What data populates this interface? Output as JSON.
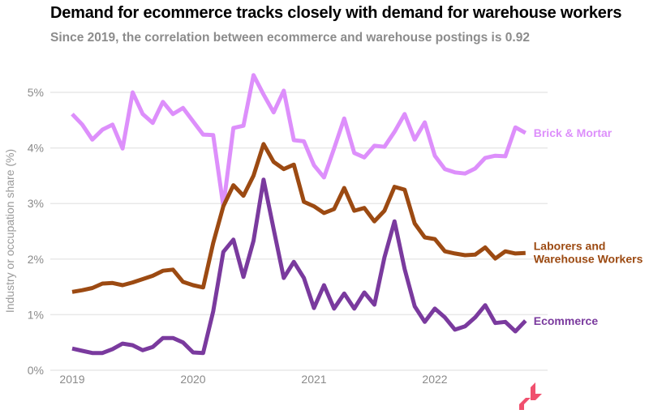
{
  "header": {
    "title": "Demand for ecommerce tracks closely with demand for warehouse workers",
    "subtitle": "Since 2019, the correlation between ecommerce and warehouse postings is 0.92"
  },
  "logo": {
    "icon": "chevron-logo-icon",
    "color": "#f0506e"
  },
  "chart_data": {
    "type": "line",
    "title": "Demand for ecommerce tracks closely with demand for warehouse workers",
    "subtitle": "Since 2019, the correlation between ecommerce and warehouse postings is 0.92",
    "xlabel": "",
    "ylabel": "Industry or occupation share (%)",
    "ylim": [
      0,
      5.5
    ],
    "yticks": [
      0,
      1,
      2,
      3,
      4,
      5
    ],
    "ytick_labels": [
      "0%",
      "1%",
      "2%",
      "3%",
      "4%",
      "5%"
    ],
    "xticks": [
      2019,
      2020,
      2021,
      2022
    ],
    "xtick_labels": [
      "2019",
      "2020",
      "2021",
      "2022"
    ],
    "x_start": "2019-01",
    "x_step": "month",
    "grid": "horizontal",
    "legend": "direct labels at right end of lines",
    "series": [
      {
        "name": "Brick & Mortar",
        "label": "Brick & Mortar",
        "color": "#dd8ffb",
        "values": [
          4.61,
          4.42,
          4.15,
          4.33,
          4.42,
          3.99,
          5.0,
          4.61,
          4.45,
          4.83,
          4.61,
          4.72,
          4.48,
          4.24,
          4.23,
          2.95,
          4.36,
          4.4,
          5.31,
          4.96,
          4.64,
          5.03,
          4.14,
          4.12,
          3.69,
          3.47,
          3.99,
          4.53,
          3.91,
          3.83,
          4.04,
          4.02,
          4.29,
          4.61,
          4.15,
          4.46,
          3.86,
          3.62,
          3.56,
          3.54,
          3.63,
          3.82,
          3.86,
          3.85,
          4.37,
          4.27
        ]
      },
      {
        "name": "Laborers and Warehouse Workers",
        "label_lines": [
          "Laborers and",
          "Warehouse Workers"
        ],
        "color": "#9c4a12",
        "values": [
          1.41,
          1.44,
          1.48,
          1.56,
          1.57,
          1.53,
          1.58,
          1.64,
          1.7,
          1.79,
          1.81,
          1.59,
          1.53,
          1.49,
          2.29,
          2.95,
          3.33,
          3.14,
          3.5,
          4.07,
          3.75,
          3.62,
          3.7,
          3.03,
          2.95,
          2.83,
          2.9,
          3.28,
          2.87,
          2.92,
          2.68,
          2.87,
          3.3,
          3.25,
          2.64,
          2.39,
          2.36,
          2.14,
          2.1,
          2.07,
          2.08,
          2.21,
          2.01,
          2.14,
          2.1,
          2.11
        ]
      },
      {
        "name": "Ecommerce",
        "label": "Ecommerce",
        "color": "#7a3a9e",
        "values": [
          0.39,
          0.35,
          0.31,
          0.31,
          0.38,
          0.48,
          0.45,
          0.36,
          0.42,
          0.58,
          0.58,
          0.5,
          0.32,
          0.31,
          1.06,
          2.13,
          2.35,
          1.68,
          2.33,
          3.43,
          2.54,
          1.66,
          1.95,
          1.66,
          1.12,
          1.53,
          1.11,
          1.38,
          1.11,
          1.4,
          1.18,
          2.03,
          2.68,
          1.82,
          1.15,
          0.87,
          1.11,
          0.95,
          0.73,
          0.79,
          0.95,
          1.17,
          0.85,
          0.87,
          0.7,
          0.89
        ]
      }
    ]
  }
}
